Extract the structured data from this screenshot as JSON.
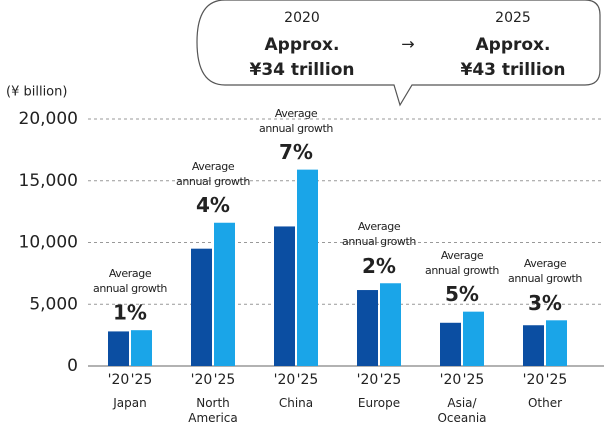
{
  "chart_data": {
    "type": "bar",
    "unit_label": "(¥ billion)",
    "callout": {
      "from_year": "2020",
      "from_prefix": "Approx.",
      "from_value": "¥34 trillion",
      "arrow": "→",
      "to_year": "2025",
      "to_prefix": "Approx.",
      "to_value": "¥43 trillion"
    },
    "categories": [
      "Japan",
      "North America",
      "China",
      "Europe",
      "Asia/ Oceania",
      "Other"
    ],
    "series": [
      {
        "name": "'20",
        "color": "#0b4ea2",
        "values": [
          2800,
          9500,
          11300,
          6150,
          3500,
          3300
        ]
      },
      {
        "name": "'25",
        "color": "#1aa5e8",
        "values": [
          2900,
          11600,
          15900,
          6700,
          4400,
          3700
        ]
      }
    ],
    "growth_label": "Average annual growth",
    "growth": {
      "values": [
        1,
        4,
        7,
        2,
        5,
        3
      ],
      "value_labels": [
        "1%",
        "4%",
        "7%",
        "2%",
        "5%",
        "3%"
      ]
    },
    "ylim": [
      0,
      20000
    ],
    "yticks": [
      {
        "value": 0,
        "label": "0"
      },
      {
        "value": 5000,
        "label": "5,000"
      },
      {
        "value": 10000,
        "label": "10,000"
      },
      {
        "value": 15000,
        "label": "15,000"
      },
      {
        "value": 20000,
        "label": "20,000"
      }
    ],
    "grid": true
  }
}
